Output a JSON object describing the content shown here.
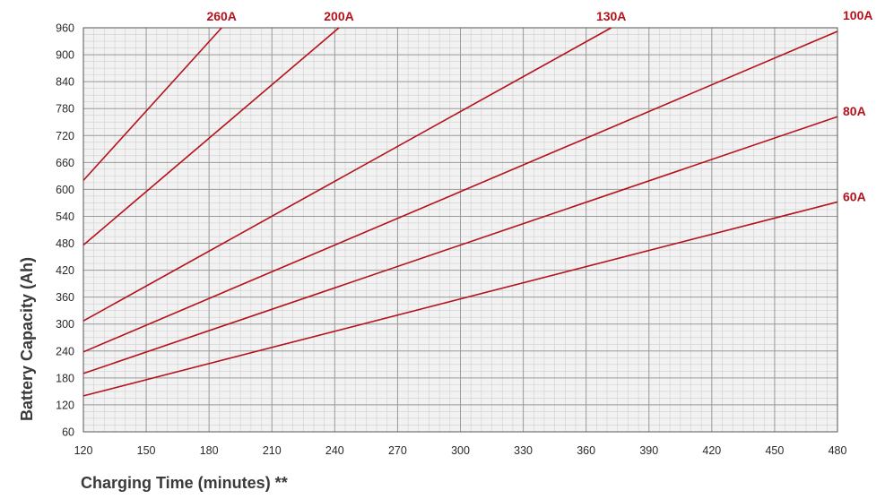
{
  "chart_data": {
    "type": "line",
    "title": "",
    "xlabel": "Charging Time (minutes) **",
    "ylabel": "Battery Capacity (Ah)",
    "xlim": [
      120,
      480
    ],
    "ylim": [
      60,
      960
    ],
    "x_ticks": [
      120,
      150,
      180,
      210,
      240,
      270,
      300,
      330,
      360,
      390,
      420,
      450,
      480
    ],
    "y_ticks": [
      60,
      120,
      180,
      240,
      300,
      360,
      420,
      480,
      540,
      600,
      660,
      720,
      780,
      840,
      900,
      960
    ],
    "grid": true,
    "line_color": "#b5121b",
    "background": "#f2f2f2",
    "grid_color": "#9a9a9a",
    "series": [
      {
        "name": "260A",
        "points": [
          [
            120,
            620
          ],
          [
            186,
            960
          ]
        ]
      },
      {
        "name": "200A",
        "points": [
          [
            120,
            476
          ],
          [
            242,
            960
          ]
        ]
      },
      {
        "name": "130A",
        "points": [
          [
            120,
            307
          ],
          [
            372,
            960
          ]
        ]
      },
      {
        "name": "100A",
        "points": [
          [
            120,
            238
          ],
          [
            480,
            952
          ]
        ]
      },
      {
        "name": "80A",
        "points": [
          [
            120,
            190
          ],
          [
            480,
            762
          ]
        ]
      },
      {
        "name": "60A",
        "points": [
          [
            120,
            140
          ],
          [
            480,
            572
          ]
        ]
      }
    ]
  }
}
